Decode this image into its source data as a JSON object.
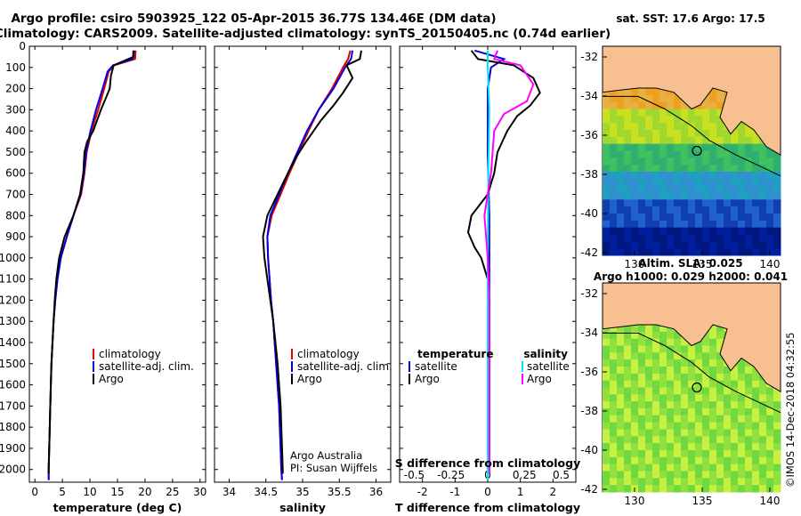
{
  "header": {
    "title_line1": "Argo profile: csiro 5903925_122 05-Apr-2015 36.77S 134.46E (DM data)",
    "title_line2": "Climatology: CARS2009. Satellite-adjusted climatology: synTS_20150405.nc (0.74d earlier)"
  },
  "pressure_axis": {
    "ticks": [
      0,
      100,
      200,
      300,
      400,
      500,
      600,
      700,
      800,
      900,
      1000,
      1100,
      1200,
      1300,
      1400,
      1500,
      1600,
      1700,
      1800,
      1900,
      2000
    ],
    "tick_labels": [
      "0",
      "100",
      "200",
      "300",
      "400",
      "500",
      "600",
      "700",
      "800",
      "900",
      "1000",
      "1100",
      "1200",
      "1300",
      "1400",
      "1500",
      "1600",
      "1700",
      "1800",
      "1900",
      "2000"
    ],
    "ylim": [
      0,
      2060
    ]
  },
  "colors": {
    "climatology": "#e00000",
    "satellite": "#0000e0",
    "argo": "#000000",
    "salinity_satellite": "#00e5ff",
    "salinity_argo": "#ff00ff",
    "land": "#f8c090"
  },
  "chart_data": [
    {
      "type": "line",
      "xlabel": "temperature (deg C)",
      "ylabel": "",
      "xlim": [
        -1,
        31
      ],
      "x_ticks": [
        0,
        5,
        10,
        15,
        20,
        25,
        30
      ],
      "x_tick_labels": [
        "0",
        "5",
        "10",
        "15",
        "20",
        "25",
        "30"
      ],
      "legend": [
        "climatology",
        "satellite-adj. clim.",
        "Argo"
      ],
      "series": [
        {
          "name": "climatology",
          "color": "#e00000",
          "points": [
            [
              18.3,
              20
            ],
            [
              18.2,
              60
            ],
            [
              14.4,
              90
            ],
            [
              13.4,
              120
            ],
            [
              12.6,
              200
            ],
            [
              11.5,
              300
            ],
            [
              10.3,
              400
            ],
            [
              9.4,
              500
            ],
            [
              9.0,
              600
            ],
            [
              8.4,
              700
            ],
            [
              7.0,
              800
            ],
            [
              5.8,
              900
            ],
            [
              4.7,
              1000
            ],
            [
              4.1,
              1100
            ],
            [
              3.7,
              1200
            ],
            [
              3.4,
              1300
            ],
            [
              3.2,
              1400
            ],
            [
              3.0,
              1500
            ],
            [
              2.9,
              1600
            ],
            [
              2.8,
              1700
            ],
            [
              2.7,
              1800
            ],
            [
              2.6,
              1900
            ],
            [
              2.5,
              2000
            ],
            [
              2.5,
              2050
            ]
          ]
        },
        {
          "name": "satellite-adj. clim.",
          "color": "#0000e0",
          "points": [
            [
              17.9,
              20
            ],
            [
              17.8,
              60
            ],
            [
              14.2,
              90
            ],
            [
              13.2,
              120
            ],
            [
              12.3,
              200
            ],
            [
              11.1,
              300
            ],
            [
              10.1,
              400
            ],
            [
              9.3,
              500
            ],
            [
              8.9,
              600
            ],
            [
              8.3,
              700
            ],
            [
              7.0,
              800
            ],
            [
              5.8,
              900
            ],
            [
              4.7,
              1000
            ],
            [
              4.1,
              1100
            ],
            [
              3.7,
              1200
            ],
            [
              3.4,
              1300
            ],
            [
              3.2,
              1400
            ],
            [
              3.0,
              1500
            ],
            [
              2.9,
              1600
            ],
            [
              2.8,
              1700
            ],
            [
              2.7,
              1800
            ],
            [
              2.6,
              1900
            ],
            [
              2.5,
              2000
            ],
            [
              2.5,
              2050
            ]
          ]
        },
        {
          "name": "Argo",
          "color": "#000000",
          "points": [
            [
              18.0,
              20
            ],
            [
              17.9,
              50
            ],
            [
              14.3,
              90
            ],
            [
              13.8,
              140
            ],
            [
              13.6,
              200
            ],
            [
              12.8,
              250
            ],
            [
              12.0,
              300
            ],
            [
              10.6,
              400
            ],
            [
              9.5,
              450
            ],
            [
              9.0,
              500
            ],
            [
              8.8,
              600
            ],
            [
              8.2,
              700
            ],
            [
              7.0,
              800
            ],
            [
              5.4,
              900
            ],
            [
              4.4,
              1000
            ],
            [
              3.9,
              1100
            ],
            [
              3.6,
              1200
            ],
            [
              3.4,
              1300
            ],
            [
              3.2,
              1400
            ],
            [
              3.0,
              1500
            ],
            [
              2.9,
              1600
            ],
            [
              2.8,
              1700
            ],
            [
              2.7,
              1800
            ],
            [
              2.6,
              1900
            ],
            [
              2.5,
              2000
            ],
            [
              2.5,
              2020
            ]
          ]
        }
      ]
    },
    {
      "type": "line",
      "xlabel": "salinity",
      "ylabel": "",
      "xlim": [
        33.8,
        36.2
      ],
      "x_ticks": [
        34,
        34.5,
        35,
        35.5,
        36
      ],
      "x_tick_labels": [
        "34",
        "34.5",
        "35",
        "35.5",
        "36"
      ],
      "legend": [
        "climatology",
        "satellite-adj. clim.",
        "Argo"
      ],
      "annotations": [
        "Argo Australia",
        "PI: Susan Wijffels"
      ],
      "series": [
        {
          "name": "climatology",
          "color": "#e00000",
          "points": [
            [
              35.65,
              20
            ],
            [
              35.62,
              60
            ],
            [
              35.55,
              100
            ],
            [
              35.4,
              200
            ],
            [
              35.22,
              300
            ],
            [
              35.08,
              400
            ],
            [
              34.95,
              500
            ],
            [
              34.82,
              600
            ],
            [
              34.7,
              700
            ],
            [
              34.58,
              800
            ],
            [
              34.52,
              900
            ],
            [
              34.53,
              1000
            ],
            [
              34.55,
              1100
            ],
            [
              34.57,
              1200
            ],
            [
              34.6,
              1300
            ],
            [
              34.62,
              1400
            ],
            [
              34.64,
              1500
            ],
            [
              34.66,
              1600
            ],
            [
              34.68,
              1700
            ],
            [
              34.69,
              1800
            ],
            [
              34.7,
              1900
            ],
            [
              34.71,
              2000
            ],
            [
              34.72,
              2050
            ]
          ]
        },
        {
          "name": "satellite-adj. clim.",
          "color": "#0000e0",
          "points": [
            [
              35.68,
              20
            ],
            [
              35.66,
              60
            ],
            [
              35.58,
              100
            ],
            [
              35.42,
              200
            ],
            [
              35.22,
              300
            ],
            [
              35.06,
              400
            ],
            [
              34.93,
              500
            ],
            [
              34.8,
              600
            ],
            [
              34.68,
              700
            ],
            [
              34.56,
              800
            ],
            [
              34.52,
              900
            ],
            [
              34.53,
              1000
            ],
            [
              34.55,
              1100
            ],
            [
              34.57,
              1200
            ],
            [
              34.6,
              1300
            ],
            [
              34.62,
              1400
            ],
            [
              34.64,
              1500
            ],
            [
              34.66,
              1600
            ],
            [
              34.68,
              1700
            ],
            [
              34.69,
              1800
            ],
            [
              34.7,
              1900
            ],
            [
              34.71,
              2000
            ],
            [
              34.72,
              2050
            ]
          ]
        },
        {
          "name": "Argo",
          "color": "#000000",
          "points": [
            [
              35.8,
              20
            ],
            [
              35.78,
              60
            ],
            [
              35.6,
              90
            ],
            [
              35.68,
              150
            ],
            [
              35.55,
              220
            ],
            [
              35.42,
              280
            ],
            [
              35.25,
              350
            ],
            [
              35.05,
              450
            ],
            [
              34.92,
              520
            ],
            [
              34.8,
              600
            ],
            [
              34.66,
              700
            ],
            [
              34.52,
              800
            ],
            [
              34.46,
              900
            ],
            [
              34.48,
              1000
            ],
            [
              34.52,
              1100
            ],
            [
              34.56,
              1200
            ],
            [
              34.6,
              1300
            ],
            [
              34.63,
              1400
            ],
            [
              34.66,
              1500
            ],
            [
              34.68,
              1600
            ],
            [
              34.7,
              1700
            ],
            [
              34.71,
              1800
            ],
            [
              34.72,
              1900
            ],
            [
              34.73,
              2000
            ],
            [
              34.73,
              2020
            ]
          ]
        }
      ]
    },
    {
      "type": "line",
      "xlabel": "T difference from climatology",
      "ylabel": "",
      "xlim": [
        -2.7,
        2.7
      ],
      "x_ticks": [
        -2,
        -1,
        0,
        1,
        2
      ],
      "x_tick_labels": [
        "-2",
        "-1",
        "0",
        "1",
        "2"
      ],
      "secondary_xlabel": "S difference from climatology",
      "secondary_x_ticks": [
        -0.5,
        -0.25,
        0,
        0.25,
        0.5
      ],
      "secondary_x_tick_labels": [
        "-0.5",
        "-0.25",
        "0",
        "0.25",
        "0.5"
      ],
      "legend_left_title": "temperature",
      "legend_right_title": "salinity",
      "legend": [
        "satellite",
        "Argo",
        "satellite",
        "Argo"
      ],
      "series": [
        {
          "name": "satellite",
          "color": "#0000e0",
          "points": [
            [
              -0.4,
              20
            ],
            [
              0.5,
              60
            ],
            [
              0.1,
              100
            ],
            [
              0.0,
              200
            ],
            [
              0.0,
              300
            ],
            [
              0.0,
              500
            ],
            [
              0.05,
              800
            ],
            [
              0.05,
              1200
            ],
            [
              0.0,
              1600
            ],
            [
              0.0,
              2050
            ]
          ]
        },
        {
          "name": "Argo",
          "color": "#000000",
          "points": [
            [
              -0.5,
              20
            ],
            [
              -0.3,
              60
            ],
            [
              0.8,
              90
            ],
            [
              1.4,
              150
            ],
            [
              1.6,
              220
            ],
            [
              1.3,
              280
            ],
            [
              0.9,
              330
            ],
            [
              0.6,
              400
            ],
            [
              0.3,
              500
            ],
            [
              0.2,
              600
            ],
            [
              0.0,
              700
            ],
            [
              -0.5,
              800
            ],
            [
              -0.6,
              880
            ],
            [
              -0.4,
              950
            ],
            [
              -0.2,
              1000
            ],
            [
              0.0,
              1100
            ],
            [
              0.05,
              1200
            ],
            [
              0.05,
              1600
            ],
            [
              0.05,
              2020
            ]
          ]
        },
        {
          "name": "satellite",
          "color": "#00e5ff",
          "points": [
            [
              0.0,
              20
            ],
            [
              0.0,
              100
            ],
            [
              0.05,
              300
            ],
            [
              0.02,
              600
            ],
            [
              0.0,
              1000
            ],
            [
              0.0,
              2050
            ]
          ]
        },
        {
          "name": "Argo",
          "color": "#ff00ff",
          "points": [
            [
              0.3,
              20
            ],
            [
              0.2,
              60
            ],
            [
              1.0,
              90
            ],
            [
              1.4,
              180
            ],
            [
              1.2,
              260
            ],
            [
              0.5,
              320
            ],
            [
              0.2,
              400
            ],
            [
              0.1,
              600
            ],
            [
              -0.1,
              800
            ],
            [
              -0.05,
              900
            ],
            [
              0.0,
              1000
            ],
            [
              0.05,
              1200
            ],
            [
              0.05,
              1600
            ],
            [
              0.05,
              2020
            ]
          ]
        }
      ]
    }
  ],
  "maps": {
    "top": {
      "title": "sat. SST: 17.6 Argo: 17.5",
      "lat_ticks": [
        "-32",
        "-34",
        "-36",
        "-38",
        "-40",
        "-42"
      ],
      "lon_ticks": [
        "130",
        "135",
        "140"
      ]
    },
    "bottom": {
      "title_line1": "Altim. SLA: 0.025",
      "title_line2": "Argo h1000: 0.029 h2000: 0.041",
      "lat_ticks": [
        "-32",
        "-34",
        "-36",
        "-38",
        "-40",
        "-42"
      ],
      "lon_ticks": [
        "130",
        "135",
        "140"
      ]
    }
  },
  "footer": {
    "credit": "©IMOS 14-Dec-2018 04:32:55"
  }
}
